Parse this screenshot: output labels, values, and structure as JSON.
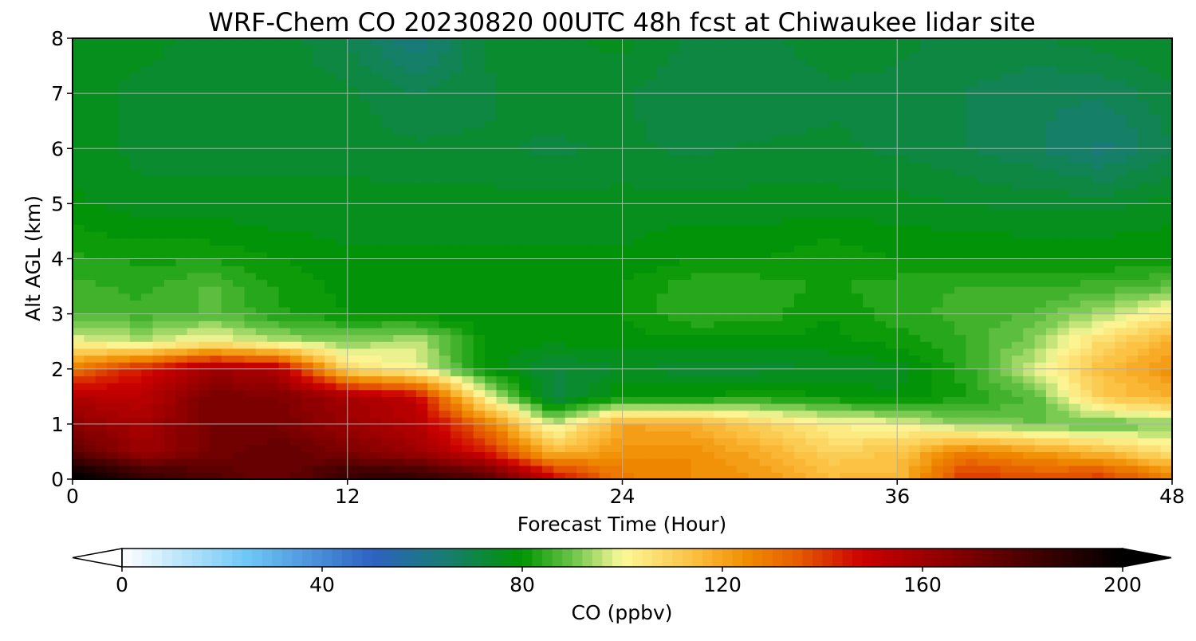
{
  "chart_data": {
    "type": "heatmap",
    "title": "WRF-Chem CO  20230820 00UTC 48h fcst at Chiwaukee lidar site",
    "xlabel": "Forecast Time (Hour)",
    "ylabel": "Alt AGL (km)",
    "xlim": [
      0,
      48
    ],
    "ylim": [
      0,
      8
    ],
    "xticks": [
      "0",
      "12",
      "24",
      "36",
      "48"
    ],
    "yticks": [
      "0",
      "1",
      "2",
      "3",
      "4",
      "5",
      "6",
      "7",
      "8"
    ],
    "grid": true,
    "x_hours": [
      0,
      3,
      6,
      9,
      12,
      15,
      18,
      21,
      24,
      27,
      30,
      33,
      36,
      39,
      42,
      45,
      48
    ],
    "z_km": [
      0.1,
      0.5,
      1.0,
      1.5,
      2.0,
      2.5,
      3.0,
      3.5,
      4.0,
      5.0,
      6.0,
      7.0,
      8.0
    ],
    "values_ppbv": [
      [
        200,
        185,
        178,
        172,
        185,
        185,
        175,
        145,
        128,
        125,
        122,
        115,
        115,
        140,
        135,
        138,
        125
      ],
      [
        178,
        160,
        170,
        175,
        168,
        160,
        145,
        115,
        123,
        125,
        118,
        110,
        113,
        128,
        122,
        115,
        105
      ],
      [
        165,
        158,
        170,
        170,
        162,
        155,
        130,
        96,
        120,
        118,
        110,
        102,
        100,
        92,
        90,
        88,
        92
      ],
      [
        155,
        152,
        170,
        168,
        158,
        150,
        100,
        70,
        80,
        80,
        82,
        80,
        78,
        82,
        88,
        112,
        118
      ],
      [
        130,
        145,
        160,
        155,
        108,
        100,
        80,
        72,
        75,
        74,
        74,
        75,
        76,
        84,
        98,
        115,
        124
      ],
      [
        100,
        95,
        102,
        95,
        92,
        96,
        79,
        78,
        79,
        79,
        79,
        79,
        81,
        85,
        92,
        108,
        118
      ],
      [
        87,
        86,
        88,
        83,
        80,
        79,
        78,
        78,
        80,
        85,
        84,
        80,
        84,
        86,
        88,
        95,
        104
      ],
      [
        86,
        84,
        88,
        82,
        79,
        78,
        78,
        78,
        80,
        84,
        84,
        82,
        84,
        85,
        85,
        86,
        89
      ],
      [
        83,
        82,
        82,
        80,
        78,
        78,
        78,
        78,
        78,
        80,
        80,
        82,
        80,
        80,
        80,
        80,
        80
      ],
      [
        78,
        76,
        76,
        75,
        76,
        76,
        76,
        76,
        76,
        76,
        76,
        76,
        76,
        75,
        74,
        74,
        76
      ],
      [
        77,
        74,
        74,
        75,
        74,
        73,
        73,
        72,
        73,
        72,
        73,
        73,
        72,
        70,
        68,
        64,
        70
      ],
      [
        77,
        74,
        74,
        74,
        73,
        70,
        72,
        74,
        73,
        70,
        70,
        72,
        72,
        70,
        68,
        68,
        72
      ],
      [
        76,
        76,
        74,
        74,
        70,
        62,
        73,
        74,
        76,
        72,
        72,
        74,
        73,
        72,
        72,
        74,
        75
      ]
    ],
    "colorbar": {
      "label": "CO  (ppbv)",
      "ticks": [
        "0",
        "40",
        "80",
        "120",
        "160",
        "200"
      ],
      "min": 0,
      "max": 200,
      "extend": "both",
      "stops": [
        {
          "v": 0,
          "color": "#ffffff"
        },
        {
          "v": 25,
          "color": "#6ec8f5"
        },
        {
          "v": 50,
          "color": "#2d62c2"
        },
        {
          "v": 65,
          "color": "#177d70"
        },
        {
          "v": 80,
          "color": "#009500"
        },
        {
          "v": 90,
          "color": "#69c448"
        },
        {
          "v": 100,
          "color": "#fcf99a"
        },
        {
          "v": 115,
          "color": "#fbbd3c"
        },
        {
          "v": 125,
          "color": "#f08c00"
        },
        {
          "v": 135,
          "color": "#e65c00"
        },
        {
          "v": 148,
          "color": "#cc0000"
        },
        {
          "v": 165,
          "color": "#8c0000"
        },
        {
          "v": 180,
          "color": "#4c0000"
        },
        {
          "v": 200,
          "color": "#000000"
        }
      ]
    }
  }
}
